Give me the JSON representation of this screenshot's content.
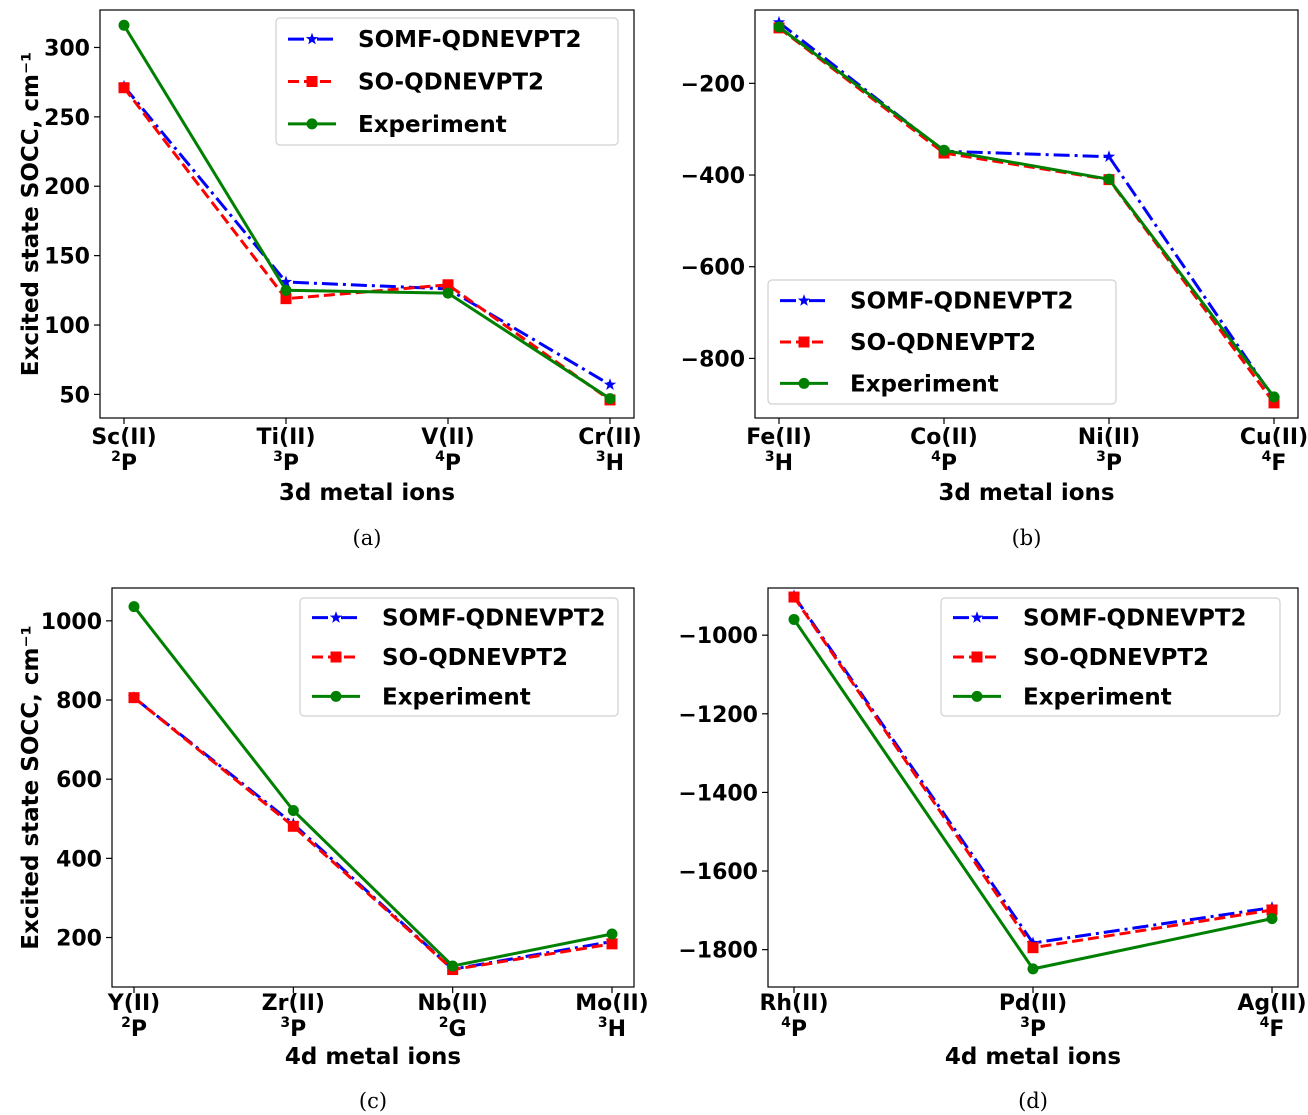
{
  "chart_data": [
    {
      "panel": "a",
      "type": "line",
      "caption": "(a)",
      "xlabel": "3d metal ions",
      "ylabel": "Excited state SOCC, cm⁻¹",
      "categories": [
        {
          "ion": "Sc(II)",
          "term_sup": "2",
          "term": "P"
        },
        {
          "ion": "Ti(II)",
          "term_sup": "3",
          "term": "P"
        },
        {
          "ion": "V(II)",
          "term_sup": "4",
          "term": "P"
        },
        {
          "ion": "Cr(II)",
          "term_sup": "3",
          "term": "H"
        }
      ],
      "ylim": [
        33,
        327
      ],
      "yticks": [
        50,
        100,
        150,
        200,
        250,
        300
      ],
      "ytick_labels": [
        "50",
        "100",
        "150",
        "200",
        "250",
        "300"
      ],
      "legend_position": "top-right",
      "series": [
        {
          "name": "SOMF-QDNEVPT2",
          "color": "#0000ff",
          "style": "dashdot",
          "marker": "star",
          "values": [
            272,
            131,
            126,
            57
          ]
        },
        {
          "name": "SO-QDNEVPT2",
          "color": "#ff0000",
          "style": "dashed",
          "marker": "square",
          "values": [
            271,
            119,
            129,
            46
          ]
        },
        {
          "name": "Experiment",
          "color": "#008000",
          "style": "solid",
          "marker": "circle",
          "values": [
            316,
            125,
            123,
            47
          ]
        }
      ]
    },
    {
      "panel": "b",
      "type": "line",
      "caption": "(b)",
      "xlabel": "3d metal ions",
      "ylabel": "",
      "categories": [
        {
          "ion": "Fe(II)",
          "term_sup": "3",
          "term": "H"
        },
        {
          "ion": "Co(II)",
          "term_sup": "4",
          "term": "P"
        },
        {
          "ion": "Ni(II)",
          "term_sup": "3",
          "term": "P"
        },
        {
          "ion": "Cu(II)",
          "term_sup": "4",
          "term": "F"
        }
      ],
      "ylim": [
        -930,
        -40
      ],
      "yticks": [
        -200,
        -400,
        -600,
        -800
      ],
      "ytick_labels": [
        "−200",
        "−400",
        "−600",
        "−800"
      ],
      "legend_position": "lower-left",
      "series": [
        {
          "name": "SOMF-QDNEVPT2",
          "color": "#0000ff",
          "style": "dashdot",
          "marker": "star",
          "values": [
            -67,
            -348,
            -360,
            -888
          ]
        },
        {
          "name": "SO-QDNEVPT2",
          "color": "#ff0000",
          "style": "dashed",
          "marker": "square",
          "values": [
            -79,
            -352,
            -410,
            -897
          ]
        },
        {
          "name": "Experiment",
          "color": "#008000",
          "style": "solid",
          "marker": "circle",
          "values": [
            -77,
            -346,
            -409,
            -884
          ]
        }
      ]
    },
    {
      "panel": "c",
      "type": "line",
      "caption": "(c)",
      "xlabel": "4d metal ions",
      "ylabel": "Excited state SOCC, cm⁻¹",
      "categories": [
        {
          "ion": "Y(II)",
          "term_sup": "2",
          "term": "P"
        },
        {
          "ion": "Zr(II)",
          "term_sup": "3",
          "term": "P"
        },
        {
          "ion": "Nb(II)",
          "term_sup": "2",
          "term": "G"
        },
        {
          "ion": "Mo(II)",
          "term_sup": "3",
          "term": "H"
        }
      ],
      "ylim": [
        75,
        1083
      ],
      "yticks": [
        200,
        400,
        600,
        800,
        1000
      ],
      "ytick_labels": [
        "200",
        "400",
        "600",
        "800",
        "1000"
      ],
      "legend_position": "top-right",
      "series": [
        {
          "name": "SOMF-QDNEVPT2",
          "color": "#0000ff",
          "style": "dashdot",
          "marker": "star",
          "values": [
            806,
            487,
            120,
            190
          ]
        },
        {
          "name": "SO-QDNEVPT2",
          "color": "#ff0000",
          "style": "dashed",
          "marker": "square",
          "values": [
            806,
            481,
            119,
            184
          ]
        },
        {
          "name": "Experiment",
          "color": "#008000",
          "style": "solid",
          "marker": "circle",
          "values": [
            1036,
            521,
            128,
            209
          ]
        }
      ]
    },
    {
      "panel": "d",
      "type": "line",
      "caption": "(d)",
      "xlabel": "4d metal ions",
      "ylabel": "",
      "categories": [
        {
          "ion": "Rh(II)",
          "term_sup": "4",
          "term": "P"
        },
        {
          "ion": "Pd(II)",
          "term_sup": "3",
          "term": "P"
        },
        {
          "ion": "Ag(II)",
          "term_sup": "4",
          "term": "F"
        }
      ],
      "ylim": [
        -1895,
        -880
      ],
      "yticks": [
        -1000,
        -1200,
        -1400,
        -1600,
        -1800
      ],
      "ytick_labels": [
        "−1000",
        "−1200",
        "−1400",
        "−1600",
        "−1800"
      ],
      "legend_position": "top-right",
      "series": [
        {
          "name": "SOMF-QDNEVPT2",
          "color": "#0000ff",
          "style": "dashdot",
          "marker": "star",
          "values": [
            -900,
            -1783,
            -1693
          ]
        },
        {
          "name": "SO-QDNEVPT2",
          "color": "#ff0000",
          "style": "dashed",
          "marker": "square",
          "values": [
            -903,
            -1795,
            -1699
          ]
        },
        {
          "name": "Experiment",
          "color": "#008000",
          "style": "solid",
          "marker": "circle",
          "values": [
            -960,
            -1849,
            -1721
          ]
        }
      ]
    }
  ]
}
